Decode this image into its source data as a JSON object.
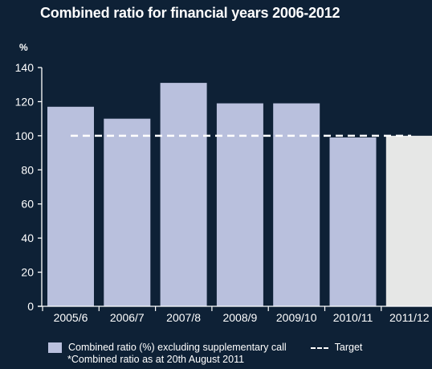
{
  "chart_data": {
    "type": "bar",
    "title": "Combined ratio for financial years 2006-2012",
    "ylabel": "%",
    "xlabel": "",
    "categories": [
      "2005/6",
      "2006/7",
      "2007/8",
      "2008/9",
      "2009/10",
      "2010/11",
      "2011/12"
    ],
    "series": [
      {
        "name": "Combined ratio (%) excluding supplementary call",
        "values": [
          117,
          110,
          131,
          119,
          119,
          99,
          100
        ]
      }
    ],
    "target": {
      "name": "Target",
      "value": 100
    },
    "ylim": [
      0,
      140
    ],
    "yticks": [
      0,
      20,
      40,
      60,
      80,
      100,
      120,
      140
    ],
    "grid": false,
    "legend_position": "bottom",
    "note": "*Combined ratio as at 20th August 2011",
    "highlight_last_bar": true
  },
  "colors": {
    "background": "#0e2136",
    "bar": "#b9c0dd",
    "bar_highlight": "#e6e7e6",
    "target_line": "#ffffff",
    "text": "#ffffff"
  }
}
